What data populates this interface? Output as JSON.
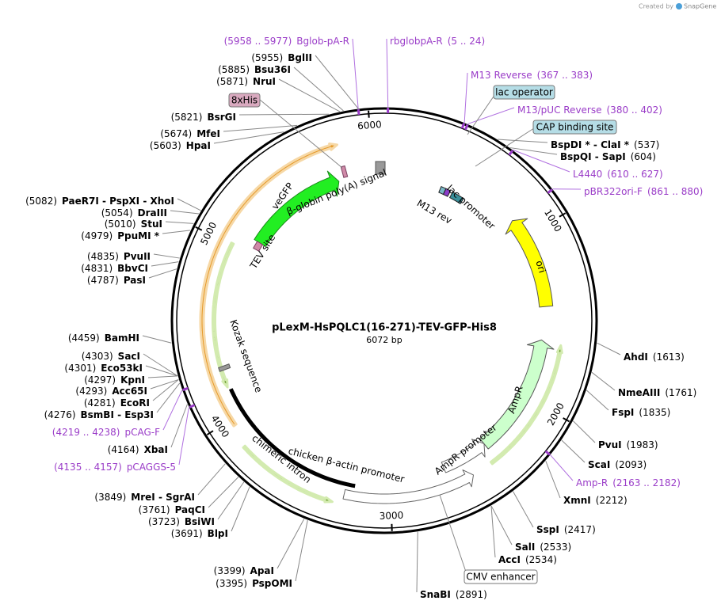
{
  "header": {
    "credit": "Created by",
    "brand": "SnapGene"
  },
  "map": {
    "title": "pLexM-HsPQLC1(16-271)-TEV-GFP-His8",
    "length": "6072 bp",
    "ticks": [
      1000,
      2000,
      3000,
      4000,
      5000,
      6000
    ]
  },
  "sites": [
    {
      "position": "(5955)",
      "name": "BglII"
    },
    {
      "position": "(5885)",
      "name": "Bsu36I"
    },
    {
      "position": "(5871)",
      "name": "NruI"
    },
    {
      "position": "(5821)",
      "name": "BsrGI"
    },
    {
      "position": "(5674)",
      "name": "MfeI"
    },
    {
      "position": "(5603)",
      "name": "HpaI"
    },
    {
      "position": "(5082)",
      "name": "PaeR7I - PspXI - XhoI"
    },
    {
      "position": "(5054)",
      "name": "DraIII"
    },
    {
      "position": "(5010)",
      "name": "StuI"
    },
    {
      "position": "(4979)",
      "name": "PpuMI *"
    },
    {
      "position": "(4835)",
      "name": "PvuII"
    },
    {
      "position": "(4831)",
      "name": "BbvCI"
    },
    {
      "position": "(4787)",
      "name": "PasI"
    },
    {
      "position": "(4459)",
      "name": "BamHI"
    },
    {
      "position": "(4303)",
      "name": "SacI"
    },
    {
      "position": "(4301)",
      "name": "Eco53kI"
    },
    {
      "position": "(4297)",
      "name": "KpnI"
    },
    {
      "position": "(4293)",
      "name": "Acc65I"
    },
    {
      "position": "(4281)",
      "name": "EcoRI"
    },
    {
      "position": "(4276)",
      "name": "BsmBI - Esp3I"
    },
    {
      "position": "(4164)",
      "name": "XbaI"
    },
    {
      "position": "(3849)",
      "name": "MreI - SgrAI"
    },
    {
      "position": "(3761)",
      "name": "PaqCI"
    },
    {
      "position": "(3723)",
      "name": "BsiWI"
    },
    {
      "position": "(3691)",
      "name": "BlpI"
    },
    {
      "position": "(3399)",
      "name": "ApaI"
    },
    {
      "position": "(3395)",
      "name": "PspOMI"
    },
    {
      "position": "(537)",
      "name": "BspDI * - ClaI *"
    },
    {
      "position": "(604)",
      "name": "BspQI - SapI"
    },
    {
      "position": "(1613)",
      "name": "AhdI"
    },
    {
      "position": "(1761)",
      "name": "NmeAIII"
    },
    {
      "position": "(1835)",
      "name": "FspI"
    },
    {
      "position": "(1983)",
      "name": "PvuI"
    },
    {
      "position": "(2093)",
      "name": "ScaI"
    },
    {
      "position": "(2212)",
      "name": "XmnI"
    },
    {
      "position": "(2417)",
      "name": "SspI"
    },
    {
      "position": "(2533)",
      "name": "SalI"
    },
    {
      "position": "(2534)",
      "name": "AccI"
    },
    {
      "position": "(2891)",
      "name": "SnaBI"
    }
  ],
  "primers": [
    {
      "range": "(5958 .. 5977)",
      "name": "Bglob-pA-R"
    },
    {
      "range": "(5 .. 24)",
      "name": "rbglobpA-R"
    },
    {
      "range": "(367 .. 383)",
      "name": "M13 Reverse"
    },
    {
      "range": "(380 .. 402)",
      "name": "M13/pUC Reverse"
    },
    {
      "range": "(610 .. 627)",
      "name": "L4440"
    },
    {
      "range": "(861 .. 880)",
      "name": "pBR322ori-F"
    },
    {
      "range": "(4219 .. 4238)",
      "name": "pCAG-F"
    },
    {
      "range": "(4135 .. 4157)",
      "name": "pCAGGS-5"
    },
    {
      "range": "(2163 .. 2182)",
      "name": "Amp-R"
    }
  ],
  "boxed_features": [
    "8xHis",
    "lac operator",
    "CAP binding site",
    "CMV enhancer"
  ],
  "features": [
    "veGFP",
    "β-globin poly(A) signal",
    "TEV site",
    "M13 rev",
    "lac promoter",
    "ori",
    "AmpR",
    "AmpR promoter",
    "chicken β-actin promoter",
    "chimeric intron",
    "Kozak sequence"
  ]
}
